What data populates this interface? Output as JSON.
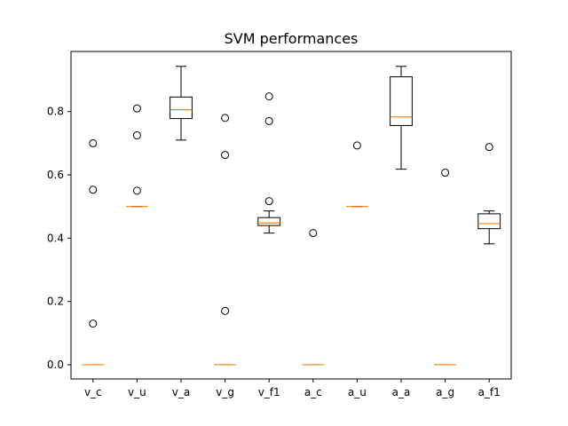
{
  "chart_data": {
    "type": "box",
    "title": "SVM performances",
    "xlabel": "",
    "ylabel": "",
    "ylim": [
      -0.045,
      0.99
    ],
    "yticks": [
      0.0,
      0.2,
      0.4,
      0.6,
      0.8
    ],
    "ytick_labels": [
      "0.0",
      "0.2",
      "0.4",
      "0.6",
      "0.8"
    ],
    "grid": false,
    "colors": {
      "box": "#000000",
      "median": "#ff7f0e",
      "background": "#ffffff"
    },
    "categories": [
      "v_c",
      "v_u",
      "v_a",
      "v_g",
      "v_f1",
      "a_c",
      "a_u",
      "a_a",
      "a_g",
      "a_f1"
    ],
    "boxes": [
      {
        "label": "v_c",
        "whislo": 0.0,
        "q1": 0.0,
        "median": 0.0,
        "q3": 0.0,
        "whishi": 0.0,
        "fliers": [
          0.7,
          0.553,
          0.13
        ]
      },
      {
        "label": "v_u",
        "whislo": 0.5,
        "q1": 0.5,
        "median": 0.5,
        "q3": 0.5,
        "whishi": 0.5,
        "fliers": [
          0.81,
          0.725,
          0.55
        ]
      },
      {
        "label": "v_a",
        "whislo": 0.71,
        "q1": 0.778,
        "median": 0.806,
        "q3": 0.846,
        "whishi": 0.943,
        "fliers": []
      },
      {
        "label": "v_g",
        "whislo": 0.0,
        "q1": 0.0,
        "median": 0.0,
        "q3": 0.0,
        "whishi": 0.0,
        "fliers": [
          0.78,
          0.663,
          0.17
        ]
      },
      {
        "label": "v_f1",
        "whislo": 0.416,
        "q1": 0.44,
        "median": 0.448,
        "q3": 0.465,
        "whishi": 0.486,
        "fliers": [
          0.848,
          0.77,
          0.517
        ]
      },
      {
        "label": "a_c",
        "whislo": 0.0,
        "q1": 0.0,
        "median": 0.0,
        "q3": 0.0,
        "whishi": 0.0,
        "fliers": [
          0.416
        ]
      },
      {
        "label": "a_u",
        "whislo": 0.5,
        "q1": 0.5,
        "median": 0.5,
        "q3": 0.5,
        "whishi": 0.5,
        "fliers": [
          0.693
        ]
      },
      {
        "label": "a_a",
        "whislo": 0.618,
        "q1": 0.756,
        "median": 0.783,
        "q3": 0.91,
        "whishi": 0.943,
        "fliers": []
      },
      {
        "label": "a_g",
        "whislo": 0.0,
        "q1": 0.0,
        "median": 0.0,
        "q3": 0.0,
        "whishi": 0.0,
        "fliers": [
          0.607
        ]
      },
      {
        "label": "a_f1",
        "whislo": 0.382,
        "q1": 0.43,
        "median": 0.446,
        "q3": 0.477,
        "whishi": 0.486,
        "fliers": [
          0.688
        ]
      }
    ]
  }
}
